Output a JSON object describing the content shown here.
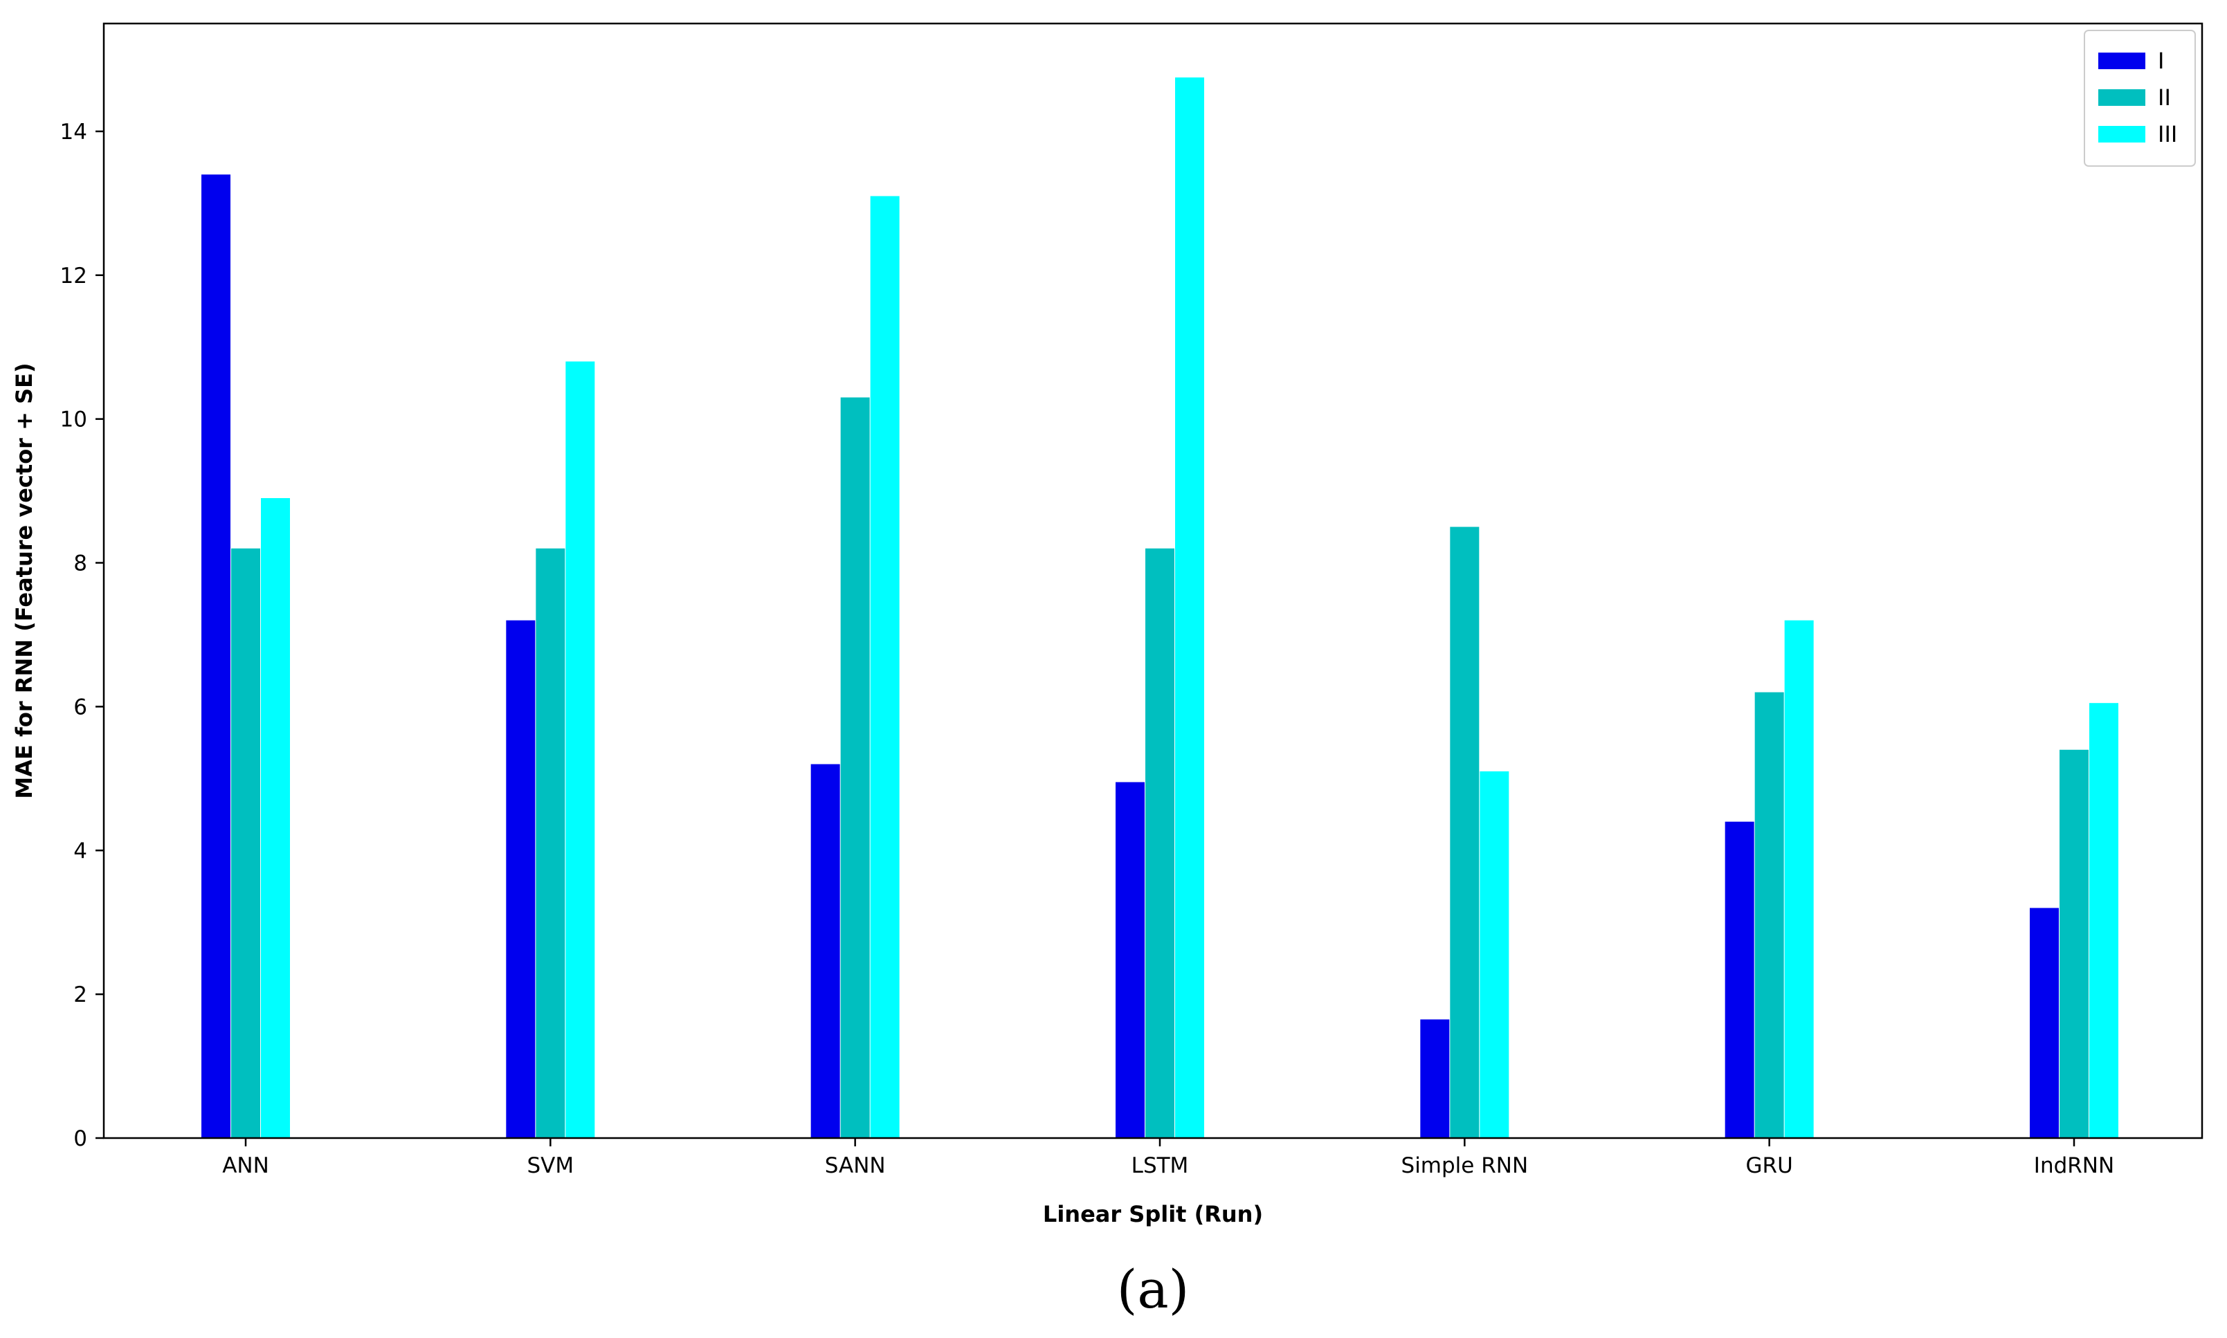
{
  "chart_data": {
    "type": "bar",
    "title": "",
    "xlabel": "Linear Split (Run)",
    "ylabel": "MAE for RNN (Feature vector + SE)",
    "categories": [
      "ANN",
      "SVM",
      "SANN",
      "LSTM",
      "Simple RNN",
      "GRU",
      "IndRNN"
    ],
    "series": [
      {
        "name": "I",
        "color": "#0000ee",
        "values": [
          13.4,
          7.2,
          5.2,
          4.95,
          1.65,
          4.4,
          3.2
        ]
      },
      {
        "name": "II",
        "color": "#00bfbf",
        "values": [
          8.2,
          8.2,
          10.3,
          8.2,
          8.5,
          6.2,
          5.4
        ]
      },
      {
        "name": "III",
        "color": "#00ffff",
        "values": [
          8.9,
          10.8,
          13.1,
          14.75,
          5.1,
          7.2,
          6.05
        ]
      }
    ],
    "ylim": [
      0,
      15.5
    ],
    "yticks": [
      0,
      2,
      4,
      6,
      8,
      10,
      12,
      14
    ],
    "grid": false,
    "legend_position": "top-right",
    "panel_label": "(a)"
  }
}
